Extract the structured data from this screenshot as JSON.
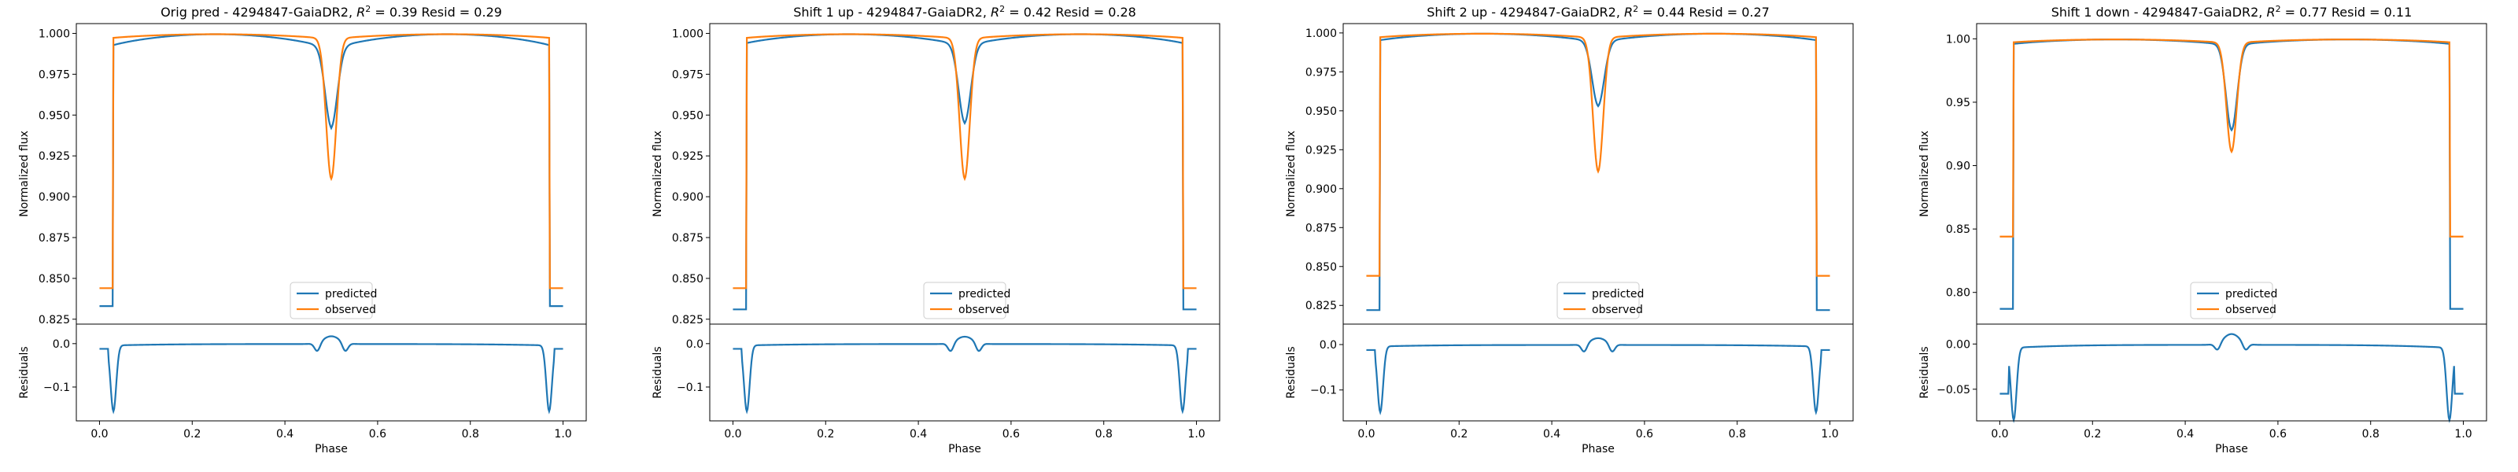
{
  "colors": {
    "predicted": "#1f77b4",
    "observed": "#ff7f0e",
    "axis": "#000000",
    "background": "#ffffff"
  },
  "chart_data": [
    {
      "type": "line",
      "title": "Orig pred - 4294847-GaiaDR2, $R^2 = 0.39$ Resid = 0.29",
      "title_parts": {
        "prefix": "Orig pred - 4294847-GaiaDR2, ",
        "r2_sym": "R",
        "r2_exp": "2",
        "r2_rest": " = 0.39 Resid = 0.29"
      },
      "ylabel": "Normalized flux",
      "ylabel_resid": "Residuals",
      "xlabel": "Phase",
      "ylim": [
        0.822,
        1.006
      ],
      "yticks": [
        0.825,
        0.85,
        0.875,
        0.9,
        0.925,
        0.95,
        0.975,
        1.0
      ],
      "ytick_labels": [
        "0.825",
        "0.850",
        "0.875",
        "0.900",
        "0.925",
        "0.950",
        "0.975",
        "1.000"
      ],
      "resid_ylim": [
        -0.178,
        0.045
      ],
      "resid_yticks": [
        -0.1,
        0.0
      ],
      "resid_ytick_labels": [
        "−0.1",
        "0.0"
      ],
      "xlim": [
        -0.05,
        1.05
      ],
      "xticks": [
        0.0,
        0.2,
        0.4,
        0.6,
        0.8,
        1.0
      ],
      "xtick_labels": [
        "0.0",
        "0.2",
        "0.4",
        "0.6",
        "0.8",
        "1.0"
      ],
      "legend": {
        "location": "lower center",
        "entries": [
          "predicted",
          "observed"
        ]
      },
      "series": [
        {
          "name": "predicted",
          "base": 0.833,
          "edge": 0.989,
          "ecl_depth": 0.047,
          "ecl_width": 0.013,
          "ecl_x": 0.5
        },
        {
          "name": "observed",
          "base": 0.844,
          "edge": 0.996,
          "ecl_depth": 0.085,
          "ecl_width": 0.011,
          "ecl_x": 0.5
        }
      ],
      "residual": {
        "name": "residuals",
        "spikes": [
          [
            0.03,
            -0.152
          ],
          [
            0.97,
            -0.152
          ]
        ],
        "bump": 0.018,
        "dips": [
          [
            0.47,
            -0.02
          ],
          [
            0.53,
            -0.02
          ]
        ]
      }
    },
    {
      "type": "line",
      "title": "Shift 1 up - 4294847-GaiaDR2, $R^2 = 0.42$ Resid = 0.28",
      "title_parts": {
        "prefix": "Shift 1 up - 4294847-GaiaDR2, ",
        "r2_sym": "R",
        "r2_exp": "2",
        "r2_rest": " = 0.42 Resid = 0.28"
      },
      "ylabel": "Normalized flux",
      "ylabel_resid": "Residuals",
      "xlabel": "Phase",
      "ylim": [
        0.822,
        1.006
      ],
      "yticks": [
        0.825,
        0.85,
        0.875,
        0.9,
        0.925,
        0.95,
        0.975,
        1.0
      ],
      "ytick_labels": [
        "0.825",
        "0.850",
        "0.875",
        "0.900",
        "0.925",
        "0.950",
        "0.975",
        "1.000"
      ],
      "resid_ylim": [
        -0.178,
        0.045
      ],
      "resid_yticks": [
        -0.1,
        0.0
      ],
      "resid_ytick_labels": [
        "−0.1",
        "0.0"
      ],
      "xlim": [
        -0.05,
        1.05
      ],
      "xticks": [
        0.0,
        0.2,
        0.4,
        0.6,
        0.8,
        1.0
      ],
      "xtick_labels": [
        "0.0",
        "0.2",
        "0.4",
        "0.6",
        "0.8",
        "1.0"
      ],
      "legend": {
        "location": "lower center",
        "entries": [
          "predicted",
          "observed"
        ]
      },
      "series": [
        {
          "name": "predicted",
          "base": 0.831,
          "edge": 0.991,
          "ecl_depth": 0.046,
          "ecl_width": 0.013,
          "ecl_x": 0.5
        },
        {
          "name": "observed",
          "base": 0.844,
          "edge": 0.996,
          "ecl_depth": 0.085,
          "ecl_width": 0.011,
          "ecl_x": 0.5
        }
      ],
      "residual": {
        "name": "residuals",
        "spikes": [
          [
            0.03,
            -0.152
          ],
          [
            0.97,
            -0.152
          ]
        ],
        "bump": 0.017,
        "dips": [
          [
            0.47,
            -0.02
          ],
          [
            0.53,
            -0.02
          ]
        ]
      }
    },
    {
      "type": "line",
      "title": "Shift 2 up - 4294847-GaiaDR2, $R^2 = 0.44$ Resid = 0.27",
      "title_parts": {
        "prefix": "Shift 2 up - 4294847-GaiaDR2, ",
        "r2_sym": "R",
        "r2_exp": "2",
        "r2_rest": " = 0.44 Resid = 0.27"
      },
      "ylabel": "Normalized flux",
      "ylabel_resid": "Residuals",
      "xlabel": "Phase",
      "ylim": [
        0.813,
        1.006
      ],
      "yticks": [
        0.825,
        0.85,
        0.875,
        0.9,
        0.925,
        0.95,
        0.975,
        1.0
      ],
      "ytick_labels": [
        "0.825",
        "0.850",
        "0.875",
        "0.900",
        "0.925",
        "0.950",
        "0.975",
        "1.000"
      ],
      "resid_ylim": [
        -0.168,
        0.045
      ],
      "resid_yticks": [
        -0.1,
        0.0
      ],
      "resid_ytick_labels": [
        "−0.1",
        "0.0"
      ],
      "xlim": [
        -0.05,
        1.05
      ],
      "xticks": [
        0.0,
        0.2,
        0.4,
        0.6,
        0.8,
        1.0
      ],
      "xtick_labels": [
        "0.0",
        "0.2",
        "0.4",
        "0.6",
        "0.8",
        "1.0"
      ],
      "legend": {
        "location": "lower center",
        "entries": [
          "predicted",
          "observed"
        ]
      },
      "series": [
        {
          "name": "predicted",
          "base": 0.822,
          "edge": 0.993,
          "ecl_depth": 0.04,
          "ecl_width": 0.013,
          "ecl_x": 0.5
        },
        {
          "name": "observed",
          "base": 0.844,
          "edge": 0.996,
          "ecl_depth": 0.085,
          "ecl_width": 0.011,
          "ecl_x": 0.5
        }
      ],
      "residual": {
        "name": "residuals",
        "spikes": [
          [
            0.03,
            -0.145
          ],
          [
            0.97,
            -0.145
          ]
        ],
        "bump": 0.015,
        "dips": [
          [
            0.47,
            -0.018
          ],
          [
            0.53,
            -0.018
          ]
        ]
      }
    },
    {
      "type": "line",
      "title": "Shift 1 down - 4294847-GaiaDR2, $R^2 = 0.77$ Resid = 0.11",
      "title_parts": {
        "prefix": "Shift 1 down - 4294847-GaiaDR2, ",
        "r2_sym": "R",
        "r2_exp": "2",
        "r2_rest": " = 0.77 Resid = 0.11"
      },
      "ylabel": "Normalized flux",
      "ylabel_resid": "Residuals",
      "xlabel": "Phase",
      "ylim": [
        0.775,
        1.012
      ],
      "yticks": [
        0.8,
        0.85,
        0.9,
        0.95,
        1.0
      ],
      "ytick_labels": [
        "0.80",
        "0.85",
        "0.90",
        "0.95",
        "1.00"
      ],
      "resid_ylim": [
        -0.085,
        0.022
      ],
      "resid_yticks": [
        -0.05,
        0.0
      ],
      "resid_ytick_labels": [
        "−0.05",
        "0.00"
      ],
      "xlim": [
        -0.05,
        1.05
      ],
      "xticks": [
        0.0,
        0.2,
        0.4,
        0.6,
        0.8,
        1.0
      ],
      "xtick_labels": [
        "0.0",
        "0.2",
        "0.4",
        "0.6",
        "0.8",
        "1.0"
      ],
      "legend": {
        "location": "lower center",
        "entries": [
          "predicted",
          "observed"
        ]
      },
      "series": [
        {
          "name": "predicted",
          "base": 0.787,
          "edge": 0.994,
          "ecl_depth": 0.066,
          "ecl_width": 0.012,
          "ecl_x": 0.5
        },
        {
          "name": "observed",
          "base": 0.844,
          "edge": 0.996,
          "ecl_depth": 0.085,
          "ecl_width": 0.011,
          "ecl_x": 0.5
        }
      ],
      "residual": {
        "name": "residuals",
        "spikes": [
          [
            0.03,
            -0.08
          ],
          [
            0.97,
            -0.08
          ]
        ],
        "bump": 0.012,
        "dips": [
          [
            0.47,
            -0.008
          ],
          [
            0.53,
            -0.008
          ]
        ],
        "edge_offset": -0.055
      }
    }
  ]
}
